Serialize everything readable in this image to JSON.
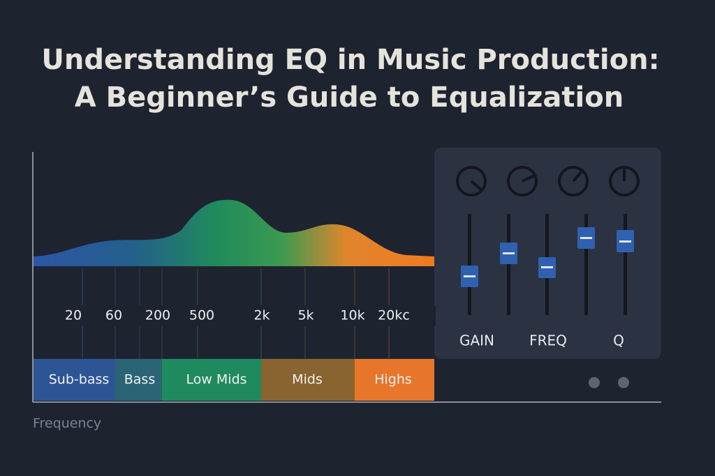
{
  "header": {
    "title_line_1": "Understanding EQ in Music Production:",
    "title_line_2": "A Beginner’s Guide to Equalization"
  },
  "frequency_labels": [
    "20",
    "60",
    "200",
    "500",
    "2k",
    "5k",
    "10k",
    "20kc"
  ],
  "bands": [
    "Sub-bass",
    "Bass",
    "Low Mids",
    "Mids",
    "Highs"
  ],
  "mixer": {
    "labels": [
      "GAIN",
      "FREQ",
      "Q"
    ]
  },
  "axis_label": "Frequency"
}
